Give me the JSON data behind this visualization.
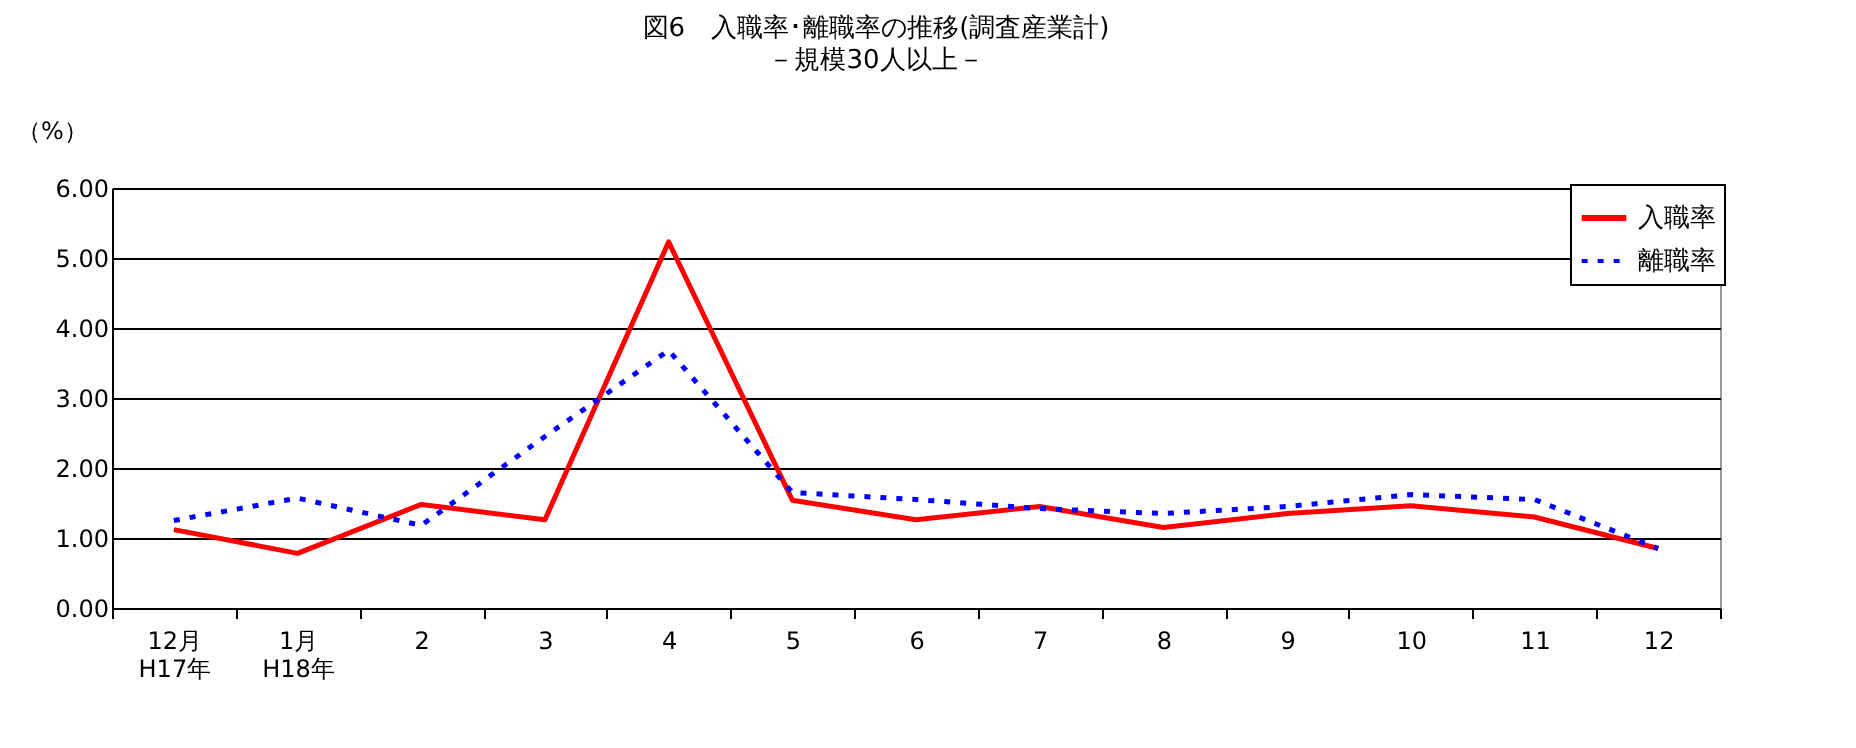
{
  "chart_data": {
    "type": "line",
    "title": "図6　入職率･離職率の推移(調査産業計)",
    "subtitle": "－規模30人以上－",
    "ylabel": "（%）",
    "categories": [
      "12月\nH17年",
      "1月\nH18年",
      "2",
      "3",
      "4",
      "5",
      "6",
      "7",
      "8",
      "9",
      "10",
      "11",
      "12"
    ],
    "series": [
      {
        "name": "入職率",
        "color": "#ff0000",
        "line_style": "solid",
        "values": [
          1.12,
          0.78,
          1.48,
          1.26,
          5.23,
          1.54,
          1.26,
          1.45,
          1.15,
          1.35,
          1.46,
          1.3,
          0.85
        ]
      },
      {
        "name": "離職率",
        "color": "#0000ff",
        "line_style": "dotted",
        "values": [
          1.25,
          1.57,
          1.18,
          2.45,
          3.68,
          1.65,
          1.55,
          1.42,
          1.35,
          1.45,
          1.62,
          1.55,
          0.85
        ]
      }
    ],
    "ylim": [
      0,
      6
    ],
    "yticks": [
      {
        "value": 0,
        "label": "0.00"
      },
      {
        "value": 1,
        "label": "1.00"
      },
      {
        "value": 2,
        "label": "2.00"
      },
      {
        "value": 3,
        "label": "3.00"
      },
      {
        "value": 4,
        "label": "4.00"
      },
      {
        "value": 5,
        "label": "5.00"
      },
      {
        "value": 6,
        "label": "6.00"
      }
    ],
    "grid": "y",
    "legend": "top right",
    "marker": "none"
  }
}
